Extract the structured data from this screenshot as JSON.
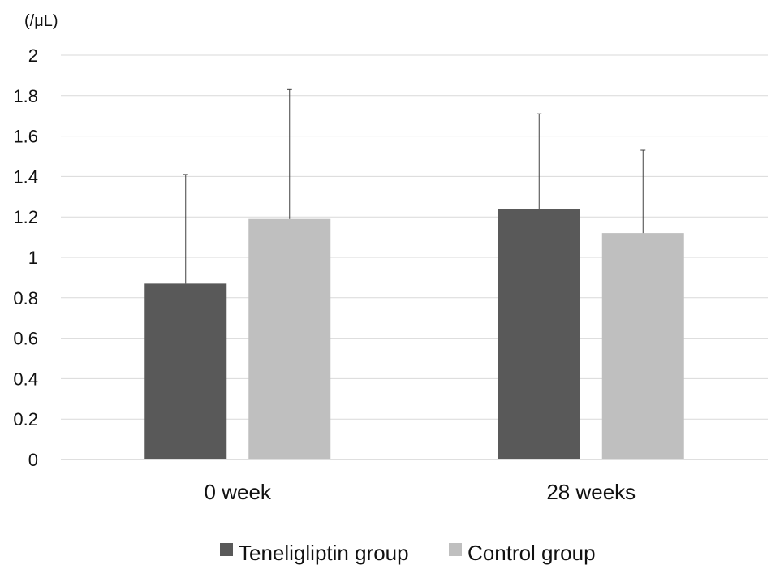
{
  "chart_data": {
    "type": "bar",
    "unit_label": "(/μL)",
    "categories": [
      "0 week",
      "28 weeks"
    ],
    "series": [
      {
        "name": "Teneligliptin group",
        "color": "#595959",
        "values": [
          0.87,
          1.24
        ],
        "error_upper": [
          1.41,
          1.71
        ]
      },
      {
        "name": "Control group",
        "color": "#bfbfbf",
        "values": [
          1.19,
          1.12
        ],
        "error_upper": [
          1.83,
          1.53
        ]
      }
    ],
    "ylim": [
      0,
      2
    ],
    "yticks": [
      "0",
      "0.2",
      "0.4",
      "0.6",
      "0.8",
      "1",
      "1.2",
      "1.4",
      "1.6",
      "1.8",
      "2"
    ],
    "ytick_values": [
      0,
      0.2,
      0.4,
      0.6,
      0.8,
      1,
      1.2,
      1.4,
      1.6,
      1.8,
      2
    ],
    "grid": true,
    "legend": "bottom-center"
  }
}
